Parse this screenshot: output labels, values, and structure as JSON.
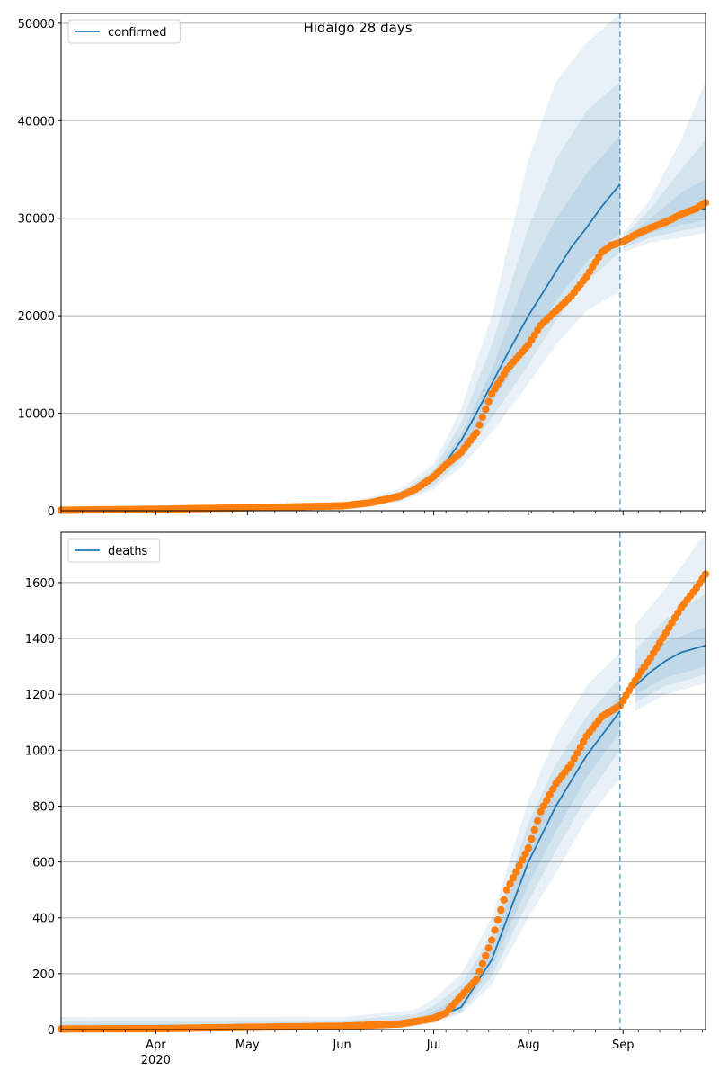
{
  "figure": {
    "title": "Hidalgo 28 days"
  },
  "colors": {
    "model_line": "#1f77b4",
    "observed_points": "#ff7f0e",
    "band": "#1f77b4",
    "forecast_marker": "#1f77b4",
    "grid": "#b0b0b0"
  },
  "chart_data": [
    {
      "type": "line",
      "name": "confirmed-panel",
      "legend": {
        "label": "confirmed",
        "placement": "top-left"
      },
      "grid": "horizontal",
      "x_range": [
        "2020-03-01",
        "2020-09-28"
      ],
      "ylim": [
        0,
        51000
      ],
      "y_ticks": [
        0,
        10000,
        20000,
        30000,
        40000,
        50000
      ],
      "x_ticks": [
        {
          "date": "2020-04-01",
          "label": "Apr",
          "sublabel": "2020"
        },
        {
          "date": "2020-05-01",
          "label": "May",
          "sublabel": ""
        },
        {
          "date": "2020-06-01",
          "label": "Jun",
          "sublabel": ""
        },
        {
          "date": "2020-07-01",
          "label": "Jul",
          "sublabel": ""
        },
        {
          "date": "2020-08-01",
          "label": "Aug",
          "sublabel": ""
        },
        {
          "date": "2020-09-01",
          "label": "Sep",
          "sublabel": ""
        }
      ],
      "show_x_labels": false,
      "forecast_date": "2020-08-31",
      "model_line": {
        "x": [
          "2020-03-01",
          "2020-05-01",
          "2020-06-01",
          "2020-06-15",
          "2020-06-25",
          "2020-07-01",
          "2020-07-05",
          "2020-07-10",
          "2020-07-15",
          "2020-07-20",
          "2020-07-25",
          "2020-08-01",
          "2020-08-05",
          "2020-08-10",
          "2020-08-15",
          "2020-08-20",
          "2020-08-25",
          "2020-08-31",
          "2020-09-01",
          "2020-09-05",
          "2020-09-10",
          "2020-09-15",
          "2020-09-20",
          "2020-09-25",
          "2020-09-28"
        ],
        "y": [
          0,
          150,
          400,
          900,
          2000,
          3500,
          5000,
          7200,
          10000,
          13000,
          16000,
          20000,
          22000,
          24500,
          27000,
          29000,
          31200,
          33500,
          27500,
          28200,
          29000,
          29700,
          30300,
          30800,
          31000
        ]
      },
      "bands": [
        {
          "x": [
            "2020-03-01",
            "2020-06-01",
            "2020-06-20",
            "2020-07-01",
            "2020-07-10",
            "2020-07-20",
            "2020-08-01",
            "2020-08-10",
            "2020-08-20",
            "2020-08-31",
            "2020-09-01",
            "2020-09-10",
            "2020-09-20",
            "2020-09-28"
          ],
          "low": [
            0,
            300,
            900,
            2200,
            4500,
            8000,
            13000,
            17000,
            20500,
            22500,
            26500,
            27500,
            28000,
            28500
          ],
          "high": [
            200,
            700,
            2200,
            4800,
            10500,
            20000,
            36000,
            44000,
            48000,
            51000,
            28500,
            32000,
            38000,
            44000
          ]
        },
        {
          "x": [
            "2020-03-01",
            "2020-06-01",
            "2020-06-20",
            "2020-07-01",
            "2020-07-10",
            "2020-07-20",
            "2020-08-01",
            "2020-08-10",
            "2020-08-20",
            "2020-08-31",
            "2020-09-01",
            "2020-09-10",
            "2020-09-20",
            "2020-09-28"
          ],
          "low": [
            0,
            330,
            1000,
            2600,
            5200,
            9500,
            15000,
            19500,
            23500,
            26500,
            26900,
            28000,
            28700,
            29200
          ],
          "high": [
            180,
            600,
            1900,
            4200,
            9000,
            17000,
            29000,
            36000,
            41000,
            44000,
            28100,
            31000,
            35000,
            38000
          ]
        },
        {
          "x": [
            "2020-03-01",
            "2020-06-01",
            "2020-06-20",
            "2020-07-01",
            "2020-07-10",
            "2020-07-20",
            "2020-08-01",
            "2020-08-10",
            "2020-08-20",
            "2020-08-31",
            "2020-09-01",
            "2020-09-10",
            "2020-09-20",
            "2020-09-28"
          ],
          "low": [
            0,
            360,
            1150,
            3000,
            6000,
            11000,
            17000,
            21500,
            25500,
            28500,
            27200,
            28500,
            29300,
            29800
          ],
          "high": [
            160,
            520,
            1650,
            3800,
            7800,
            14500,
            24500,
            30000,
            34500,
            38500,
            27800,
            30000,
            32600,
            34000
          ]
        }
      ],
      "observed": {
        "x": [
          "2020-03-01",
          "2020-04-01",
          "2020-05-01",
          "2020-06-01",
          "2020-06-10",
          "2020-06-20",
          "2020-06-25",
          "2020-07-01",
          "2020-07-05",
          "2020-07-10",
          "2020-07-15",
          "2020-07-20",
          "2020-07-25",
          "2020-08-01",
          "2020-08-05",
          "2020-08-10",
          "2020-08-15",
          "2020-08-20",
          "2020-08-25",
          "2020-08-28",
          "2020-09-01",
          "2020-09-05",
          "2020-09-10",
          "2020-09-15",
          "2020-09-20",
          "2020-09-25",
          "2020-09-28"
        ],
        "y": [
          50,
          150,
          300,
          500,
          800,
          1500,
          2200,
          3500,
          4700,
          6000,
          8000,
          12000,
          14500,
          17000,
          19000,
          20500,
          22000,
          24000,
          26500,
          27200,
          27600,
          28300,
          29000,
          29600,
          30400,
          31000,
          31600
        ]
      }
    },
    {
      "type": "line",
      "name": "deaths-panel",
      "legend": {
        "label": "deaths",
        "placement": "top-left"
      },
      "grid": "horizontal",
      "x_range": [
        "2020-03-01",
        "2020-09-28"
      ],
      "ylim": [
        0,
        1780
      ],
      "y_ticks": [
        0,
        200,
        400,
        600,
        800,
        1000,
        1200,
        1400,
        1600
      ],
      "x_ticks": [
        {
          "date": "2020-04-01",
          "label": "Apr",
          "sublabel": "2020"
        },
        {
          "date": "2020-05-01",
          "label": "May",
          "sublabel": ""
        },
        {
          "date": "2020-06-01",
          "label": "Jun",
          "sublabel": ""
        },
        {
          "date": "2020-07-01",
          "label": "Jul",
          "sublabel": ""
        },
        {
          "date": "2020-08-01",
          "label": "Aug",
          "sublabel": ""
        },
        {
          "date": "2020-09-01",
          "label": "Sep",
          "sublabel": ""
        }
      ],
      "show_x_labels": true,
      "forecast_date": "2020-08-31",
      "model_line": {
        "x": [
          "2020-03-01",
          "2020-05-01",
          "2020-06-01",
          "2020-06-20",
          "2020-07-01",
          "2020-07-10",
          "2020-07-20",
          "2020-08-01",
          "2020-08-10",
          "2020-08-20",
          "2020-08-31",
          "2020-09-05",
          "2020-09-10",
          "2020-09-15",
          "2020-09-20",
          "2020-09-28"
        ],
        "y": [
          0,
          5,
          10,
          20,
          40,
          80,
          250,
          600,
          800,
          980,
          1140,
          1230,
          1280,
          1320,
          1350,
          1375
        ]
      },
      "bands": [
        {
          "x": [
            "2020-03-01",
            "2020-06-01",
            "2020-06-25",
            "2020-07-01",
            "2020-07-10",
            "2020-07-20",
            "2020-08-01",
            "2020-08-10",
            "2020-08-20",
            "2020-08-31",
            "2020-09-05",
            "2020-09-15",
            "2020-09-28"
          ],
          "low": [
            0,
            0,
            10,
            25,
            55,
            160,
            400,
            560,
            750,
            900,
            1140,
            1200,
            1240
          ],
          "high": [
            45,
            45,
            70,
            110,
            200,
            400,
            820,
            1050,
            1230,
            1350,
            1450,
            1580,
            1780
          ]
        },
        {
          "x": [
            "2020-03-01",
            "2020-06-01",
            "2020-06-25",
            "2020-07-01",
            "2020-07-10",
            "2020-07-20",
            "2020-08-01",
            "2020-08-10",
            "2020-08-20",
            "2020-08-31",
            "2020-09-05",
            "2020-09-15",
            "2020-09-28"
          ],
          "low": [
            0,
            0,
            14,
            30,
            62,
            190,
            460,
            640,
            830,
            1000,
            1170,
            1230,
            1270
          ],
          "high": [
            30,
            32,
            55,
            85,
            160,
            340,
            740,
            950,
            1120,
            1260,
            1360,
            1470,
            1560
          ]
        },
        {
          "x": [
            "2020-03-01",
            "2020-06-01",
            "2020-06-25",
            "2020-07-01",
            "2020-07-10",
            "2020-07-20",
            "2020-08-01",
            "2020-08-10",
            "2020-08-20",
            "2020-08-31",
            "2020-09-05",
            "2020-09-15",
            "2020-09-28"
          ],
          "low": [
            0,
            2,
            17,
            34,
            70,
            220,
            520,
            710,
            900,
            1070,
            1200,
            1260,
            1300
          ],
          "high": [
            18,
            20,
            40,
            65,
            120,
            290,
            680,
            880,
            1050,
            1200,
            1290,
            1390,
            1440
          ]
        }
      ],
      "observed": {
        "x": [
          "2020-03-01",
          "2020-04-01",
          "2020-05-01",
          "2020-06-01",
          "2020-06-20",
          "2020-07-01",
          "2020-07-05",
          "2020-07-10",
          "2020-07-15",
          "2020-07-20",
          "2020-07-25",
          "2020-08-01",
          "2020-08-05",
          "2020-08-10",
          "2020-08-15",
          "2020-08-20",
          "2020-08-25",
          "2020-08-31",
          "2020-09-05",
          "2020-09-10",
          "2020-09-15",
          "2020-09-20",
          "2020-09-25",
          "2020-09-28"
        ],
        "y": [
          2,
          3,
          8,
          12,
          20,
          40,
          60,
          120,
          180,
          320,
          500,
          650,
          780,
          880,
          950,
          1050,
          1120,
          1160,
          1250,
          1330,
          1420,
          1510,
          1580,
          1630
        ]
      }
    }
  ]
}
